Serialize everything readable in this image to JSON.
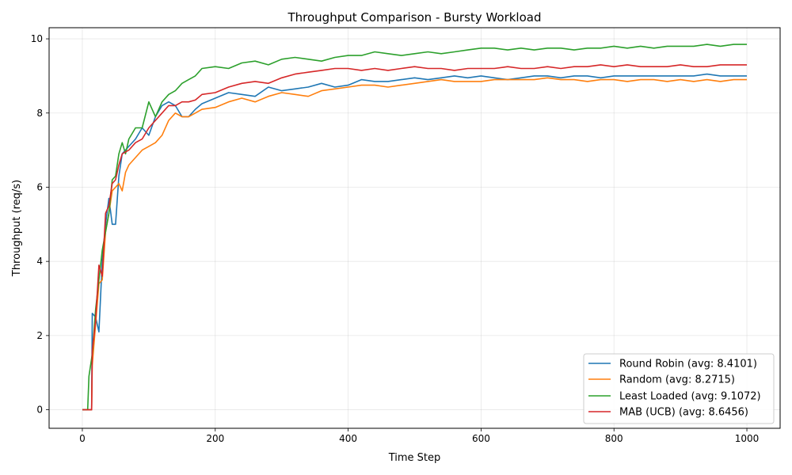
{
  "chart_data": {
    "type": "line",
    "title": "Throughput Comparison - Bursty Workload",
    "xlabel": "Time Step",
    "ylabel": "Throughput (req/s)",
    "xlim": [
      -50,
      1050
    ],
    "ylim": [
      -0.5,
      10.3
    ],
    "xticks": [
      0,
      200,
      400,
      600,
      800,
      1000
    ],
    "yticks": [
      0,
      2,
      4,
      6,
      8,
      10
    ],
    "grid": true,
    "legend_position": "lower-right",
    "series": [
      {
        "name": "Round Robin (avg: 8.4101)",
        "color": "#1f77b4",
        "points": [
          [
            0,
            0
          ],
          [
            10,
            0
          ],
          [
            14,
            0
          ],
          [
            15,
            2.6
          ],
          [
            20,
            2.5
          ],
          [
            25,
            2.1
          ],
          [
            30,
            4.0
          ],
          [
            35,
            5.0
          ],
          [
            40,
            5.7
          ],
          [
            45,
            5.0
          ],
          [
            50,
            5.0
          ],
          [
            55,
            6.3
          ],
          [
            60,
            6.9
          ],
          [
            70,
            7.1
          ],
          [
            80,
            7.3
          ],
          [
            90,
            7.6
          ],
          [
            100,
            7.4
          ],
          [
            110,
            7.9
          ],
          [
            120,
            8.2
          ],
          [
            130,
            8.3
          ],
          [
            140,
            8.2
          ],
          [
            150,
            7.9
          ],
          [
            160,
            7.9
          ],
          [
            170,
            8.1
          ],
          [
            180,
            8.25
          ],
          [
            200,
            8.4
          ],
          [
            220,
            8.55
          ],
          [
            240,
            8.5
          ],
          [
            260,
            8.45
          ],
          [
            280,
            8.7
          ],
          [
            300,
            8.6
          ],
          [
            320,
            8.65
          ],
          [
            340,
            8.7
          ],
          [
            360,
            8.8
          ],
          [
            380,
            8.7
          ],
          [
            400,
            8.75
          ],
          [
            420,
            8.9
          ],
          [
            440,
            8.85
          ],
          [
            460,
            8.85
          ],
          [
            480,
            8.9
          ],
          [
            500,
            8.95
          ],
          [
            520,
            8.9
          ],
          [
            540,
            8.95
          ],
          [
            560,
            9.0
          ],
          [
            580,
            8.95
          ],
          [
            600,
            9.0
          ],
          [
            620,
            8.95
          ],
          [
            640,
            8.9
          ],
          [
            660,
            8.95
          ],
          [
            680,
            9.0
          ],
          [
            700,
            9.0
          ],
          [
            720,
            8.95
          ],
          [
            740,
            9.0
          ],
          [
            760,
            9.0
          ],
          [
            780,
            8.95
          ],
          [
            800,
            9.0
          ],
          [
            820,
            9.0
          ],
          [
            840,
            9.0
          ],
          [
            860,
            9.0
          ],
          [
            880,
            9.0
          ],
          [
            900,
            9.0
          ],
          [
            920,
            9.0
          ],
          [
            940,
            9.05
          ],
          [
            960,
            9.0
          ],
          [
            980,
            9.0
          ],
          [
            1000,
            9.0
          ]
        ]
      },
      {
        "name": "Random (avg: 8.2715)",
        "color": "#ff7f0e",
        "points": [
          [
            0,
            0
          ],
          [
            10,
            0
          ],
          [
            14,
            0
          ],
          [
            15,
            1.2
          ],
          [
            20,
            2.3
          ],
          [
            25,
            3.4
          ],
          [
            30,
            3.5
          ],
          [
            35,
            4.8
          ],
          [
            40,
            5.3
          ],
          [
            45,
            5.9
          ],
          [
            50,
            6.0
          ],
          [
            55,
            6.1
          ],
          [
            60,
            5.9
          ],
          [
            65,
            6.4
          ],
          [
            70,
            6.6
          ],
          [
            80,
            6.8
          ],
          [
            90,
            7.0
          ],
          [
            100,
            7.1
          ],
          [
            110,
            7.2
          ],
          [
            120,
            7.4
          ],
          [
            130,
            7.8
          ],
          [
            140,
            8.0
          ],
          [
            150,
            7.9
          ],
          [
            160,
            7.9
          ],
          [
            170,
            8.0
          ],
          [
            180,
            8.1
          ],
          [
            200,
            8.15
          ],
          [
            220,
            8.3
          ],
          [
            240,
            8.4
          ],
          [
            260,
            8.3
          ],
          [
            280,
            8.45
          ],
          [
            300,
            8.55
          ],
          [
            320,
            8.5
          ],
          [
            340,
            8.45
          ],
          [
            360,
            8.6
          ],
          [
            380,
            8.65
          ],
          [
            400,
            8.7
          ],
          [
            420,
            8.75
          ],
          [
            440,
            8.75
          ],
          [
            460,
            8.7
          ],
          [
            480,
            8.75
          ],
          [
            500,
            8.8
          ],
          [
            520,
            8.85
          ],
          [
            540,
            8.9
          ],
          [
            560,
            8.85
          ],
          [
            580,
            8.85
          ],
          [
            600,
            8.85
          ],
          [
            620,
            8.9
          ],
          [
            640,
            8.9
          ],
          [
            660,
            8.9
          ],
          [
            680,
            8.9
          ],
          [
            700,
            8.95
          ],
          [
            720,
            8.9
          ],
          [
            740,
            8.9
          ],
          [
            760,
            8.85
          ],
          [
            780,
            8.9
          ],
          [
            800,
            8.9
          ],
          [
            820,
            8.85
          ],
          [
            840,
            8.9
          ],
          [
            860,
            8.9
          ],
          [
            880,
            8.85
          ],
          [
            900,
            8.9
          ],
          [
            920,
            8.85
          ],
          [
            940,
            8.9
          ],
          [
            960,
            8.85
          ],
          [
            980,
            8.9
          ],
          [
            1000,
            8.9
          ]
        ]
      },
      {
        "name": "Least Loaded (avg: 9.1072)",
        "color": "#2ca02c",
        "points": [
          [
            0,
            0
          ],
          [
            8,
            0
          ],
          [
            10,
            0.9
          ],
          [
            15,
            1.5
          ],
          [
            20,
            2.7
          ],
          [
            25,
            3.5
          ],
          [
            30,
            4.3
          ],
          [
            35,
            4.8
          ],
          [
            40,
            5.3
          ],
          [
            45,
            6.2
          ],
          [
            50,
            6.3
          ],
          [
            55,
            6.9
          ],
          [
            60,
            7.2
          ],
          [
            65,
            6.9
          ],
          [
            70,
            7.3
          ],
          [
            80,
            7.6
          ],
          [
            90,
            7.6
          ],
          [
            100,
            8.3
          ],
          [
            110,
            7.9
          ],
          [
            120,
            8.3
          ],
          [
            130,
            8.5
          ],
          [
            140,
            8.6
          ],
          [
            150,
            8.8
          ],
          [
            160,
            8.9
          ],
          [
            170,
            9.0
          ],
          [
            180,
            9.2
          ],
          [
            200,
            9.25
          ],
          [
            220,
            9.2
          ],
          [
            240,
            9.35
          ],
          [
            260,
            9.4
          ],
          [
            280,
            9.3
          ],
          [
            300,
            9.45
          ],
          [
            320,
            9.5
          ],
          [
            340,
            9.45
          ],
          [
            360,
            9.4
          ],
          [
            380,
            9.5
          ],
          [
            400,
            9.55
          ],
          [
            420,
            9.55
          ],
          [
            440,
            9.65
          ],
          [
            460,
            9.6
          ],
          [
            480,
            9.55
          ],
          [
            500,
            9.6
          ],
          [
            520,
            9.65
          ],
          [
            540,
            9.6
          ],
          [
            560,
            9.65
          ],
          [
            580,
            9.7
          ],
          [
            600,
            9.75
          ],
          [
            620,
            9.75
          ],
          [
            640,
            9.7
          ],
          [
            660,
            9.75
          ],
          [
            680,
            9.7
          ],
          [
            700,
            9.75
          ],
          [
            720,
            9.75
          ],
          [
            740,
            9.7
          ],
          [
            760,
            9.75
          ],
          [
            780,
            9.75
          ],
          [
            800,
            9.8
          ],
          [
            820,
            9.75
          ],
          [
            840,
            9.8
          ],
          [
            860,
            9.75
          ],
          [
            880,
            9.8
          ],
          [
            900,
            9.8
          ],
          [
            920,
            9.8
          ],
          [
            940,
            9.85
          ],
          [
            960,
            9.8
          ],
          [
            980,
            9.85
          ],
          [
            1000,
            9.85
          ]
        ]
      },
      {
        "name": "MAB (UCB) (avg: 8.6456)",
        "color": "#d62728",
        "points": [
          [
            0,
            0
          ],
          [
            10,
            0
          ],
          [
            14,
            0
          ],
          [
            15,
            1.6
          ],
          [
            20,
            2.4
          ],
          [
            25,
            3.9
          ],
          [
            30,
            3.6
          ],
          [
            35,
            5.3
          ],
          [
            40,
            5.5
          ],
          [
            45,
            6.1
          ],
          [
            50,
            6.2
          ],
          [
            55,
            6.6
          ],
          [
            60,
            6.9
          ],
          [
            70,
            7.0
          ],
          [
            80,
            7.2
          ],
          [
            90,
            7.3
          ],
          [
            100,
            7.6
          ],
          [
            110,
            7.8
          ],
          [
            120,
            8.0
          ],
          [
            130,
            8.2
          ],
          [
            140,
            8.2
          ],
          [
            150,
            8.3
          ],
          [
            160,
            8.3
          ],
          [
            170,
            8.35
          ],
          [
            180,
            8.5
          ],
          [
            200,
            8.55
          ],
          [
            220,
            8.7
          ],
          [
            240,
            8.8
          ],
          [
            260,
            8.85
          ],
          [
            280,
            8.8
          ],
          [
            300,
            8.95
          ],
          [
            320,
            9.05
          ],
          [
            340,
            9.1
          ],
          [
            360,
            9.15
          ],
          [
            380,
            9.2
          ],
          [
            400,
            9.2
          ],
          [
            420,
            9.15
          ],
          [
            440,
            9.2
          ],
          [
            460,
            9.15
          ],
          [
            480,
            9.2
          ],
          [
            500,
            9.25
          ],
          [
            520,
            9.2
          ],
          [
            540,
            9.2
          ],
          [
            560,
            9.15
          ],
          [
            580,
            9.2
          ],
          [
            600,
            9.2
          ],
          [
            620,
            9.2
          ],
          [
            640,
            9.25
          ],
          [
            660,
            9.2
          ],
          [
            680,
            9.2
          ],
          [
            700,
            9.25
          ],
          [
            720,
            9.2
          ],
          [
            740,
            9.25
          ],
          [
            760,
            9.25
          ],
          [
            780,
            9.3
          ],
          [
            800,
            9.25
          ],
          [
            820,
            9.3
          ],
          [
            840,
            9.25
          ],
          [
            860,
            9.25
          ],
          [
            880,
            9.25
          ],
          [
            900,
            9.3
          ],
          [
            920,
            9.25
          ],
          [
            940,
            9.25
          ],
          [
            960,
            9.3
          ],
          [
            980,
            9.3
          ],
          [
            1000,
            9.3
          ]
        ]
      }
    ]
  }
}
